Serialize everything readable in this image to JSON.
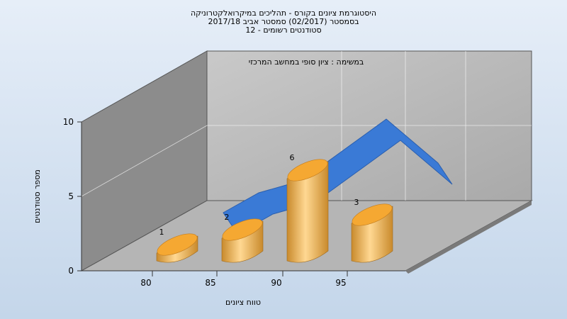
{
  "chart_data": {
    "type": "bar",
    "title_lines": [
      "היסטוגרמת ציונים בקורס - תהליכים במיקרואלקטרוניקה",
      "בסמסטר  (02/2017)  סמסטר אביב 2017/18",
      "סטודנטים רשומים - 12"
    ],
    "annotation": "במשימה : ציון סופי במחשב המרכזי",
    "xlabel": "טווח ציונים",
    "ylabel": "מספר סטודנטים",
    "ylim": [
      0,
      10
    ],
    "yticks": [
      "0",
      "5",
      "10"
    ],
    "categories": [
      "80",
      "85",
      "90",
      "95"
    ],
    "values": [
      1,
      2,
      6,
      3
    ],
    "data_labels": [
      "1",
      "2",
      "6",
      "3"
    ],
    "curve": [
      2,
      3,
      5,
      9,
      6
    ],
    "colors": {
      "bar": "#f0a83a",
      "curve": "#3a7ad6"
    }
  }
}
